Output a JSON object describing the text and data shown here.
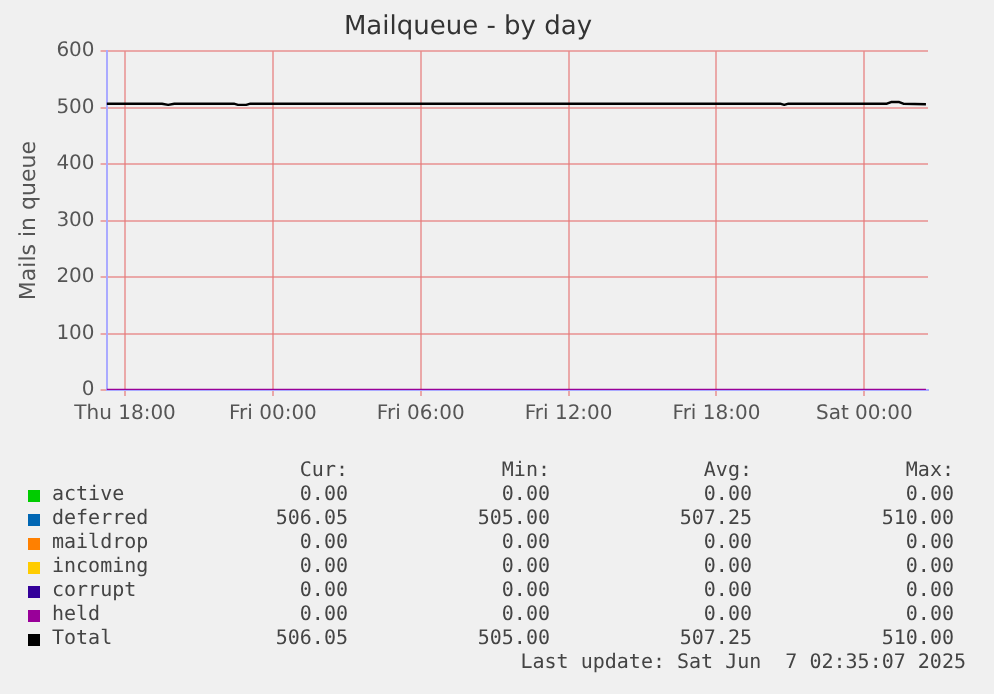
{
  "chart_data": {
    "type": "line",
    "title": "Mailqueue - by day",
    "ylabel": "Mails in queue",
    "x": [
      "2025-06-05T17:15",
      "2025-06-05T19:30",
      "2025-06-05T19:45",
      "2025-06-05T20:00",
      "2025-06-05T22:25",
      "2025-06-05T22:35",
      "2025-06-05T22:55",
      "2025-06-05T23:05",
      "2025-06-06T20:35",
      "2025-06-06T20:45",
      "2025-06-06T20:55",
      "2025-06-07T00:55",
      "2025-06-07T01:05",
      "2025-06-07T01:25",
      "2025-06-07T01:35",
      "2025-06-07T02:30"
    ],
    "xlim": [
      "2025-06-05T17:15",
      "2025-06-07T02:35"
    ],
    "xticks": [
      {
        "value": "2025-06-05T18:00",
        "label": "Thu 18:00"
      },
      {
        "value": "2025-06-06T00:00",
        "label": "Fri 00:00"
      },
      {
        "value": "2025-06-06T06:00",
        "label": "Fri 06:00"
      },
      {
        "value": "2025-06-06T12:00",
        "label": "Fri 12:00"
      },
      {
        "value": "2025-06-06T18:00",
        "label": "Fri 18:00"
      },
      {
        "value": "2025-06-07T00:00",
        "label": "Sat 00:00"
      }
    ],
    "ylim": [
      0,
      600
    ],
    "yticks": [
      0,
      100,
      200,
      300,
      400,
      500,
      600
    ],
    "grid": true,
    "legend": "bottom",
    "marker": "none",
    "line_style": "solid",
    "series": [
      {
        "name": "active",
        "color": "#00cc00",
        "values": [
          null,
          null,
          null,
          null,
          null,
          null,
          null,
          null,
          null,
          null,
          null,
          null,
          null,
          null,
          null,
          null
        ]
      },
      {
        "name": "deferred",
        "color": "#0066b3",
        "values": [
          null,
          null,
          null,
          null,
          null,
          null,
          null,
          null,
          null,
          null,
          null,
          null,
          null,
          null,
          null,
          null
        ]
      },
      {
        "name": "maildrop",
        "color": "#ff8000",
        "values": [
          null,
          null,
          null,
          null,
          null,
          null,
          null,
          null,
          null,
          null,
          null,
          null,
          null,
          null,
          null,
          null
        ]
      },
      {
        "name": "incoming",
        "color": "#ffcc00",
        "values": [
          null,
          null,
          null,
          null,
          null,
          null,
          null,
          null,
          null,
          null,
          null,
          null,
          null,
          null,
          null,
          null
        ]
      },
      {
        "name": "corrupt",
        "color": "#330099",
        "values": [
          null,
          null,
          null,
          null,
          null,
          null,
          null,
          null,
          null,
          null,
          null,
          null,
          null,
          null,
          null,
          null
        ]
      },
      {
        "name": "held",
        "color": "#990099",
        "values": [
          0,
          0,
          0,
          0,
          0,
          0,
          0,
          0,
          0,
          0,
          0,
          0,
          0,
          0,
          0,
          0
        ]
      },
      {
        "name": "Total",
        "color": "#000000",
        "values": [
          507,
          507,
          505,
          507,
          507,
          505,
          505,
          507,
          507,
          505,
          507,
          507,
          510,
          510,
          507,
          506
        ]
      }
    ],
    "annotations": [
      "Cur:",
      "Min:",
      "Avg:",
      "Max:",
      "0.00",
      "0.00",
      "0.00",
      "0.00",
      "506.05",
      "505.00",
      "507.25",
      "510.00",
      "0.00",
      "0.00",
      "0.00",
      "0.00",
      "0.00",
      "0.00",
      "0.00",
      "0.00",
      "0.00",
      "0.00",
      "0.00",
      "0.00",
      "0.00",
      "0.00",
      "0.00",
      "0.00",
      "506.05",
      "505.00",
      "507.25",
      "510.00",
      "Last update: Sat Jun  7 02:35:07 2025"
    ]
  }
}
